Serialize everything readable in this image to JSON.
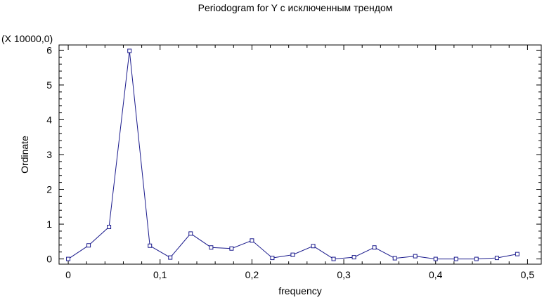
{
  "chart_data": {
    "type": "line",
    "title": "Periodogram for Y с исключенным трендом",
    "xlabel": "frequency",
    "ylabel": "Ordinate",
    "y_multiplier_label": "(X 10000,0)",
    "xlim": [
      -0.01,
      0.515
    ],
    "ylim": [
      -0.15,
      6.15
    ],
    "x_ticks": [
      0,
      0.1,
      0.2,
      0.3,
      0.4,
      0.5
    ],
    "x_tick_labels": [
      "0",
      "0,1",
      "0,2",
      "0,3",
      "0,4",
      "0,5"
    ],
    "y_ticks": [
      0,
      1,
      2,
      3,
      4,
      5,
      6
    ],
    "y_tick_labels": [
      "0",
      "1",
      "2",
      "3",
      "4",
      "5",
      "6"
    ],
    "grid": false,
    "colors": {
      "series": "#1a1a8c",
      "axes": "#000000"
    },
    "series": [
      {
        "x": [
          0,
          0.0222,
          0.0444,
          0.0667,
          0.0889,
          0.1111,
          0.1333,
          0.1556,
          0.1778,
          0.2,
          0.2222,
          0.2444,
          0.2667,
          0.2889,
          0.3111,
          0.3333,
          0.3556,
          0.3778,
          0.4,
          0.4222,
          0.4444,
          0.4667,
          0.4889
        ],
        "y": [
          0,
          0.39,
          0.92,
          5.98,
          0.38,
          0.04,
          0.73,
          0.33,
          0.3,
          0.53,
          0.03,
          0.12,
          0.37,
          0.0,
          0.05,
          0.33,
          0.02,
          0.08,
          0.0,
          0.0,
          0.0,
          0.03,
          0.14
        ]
      }
    ]
  }
}
